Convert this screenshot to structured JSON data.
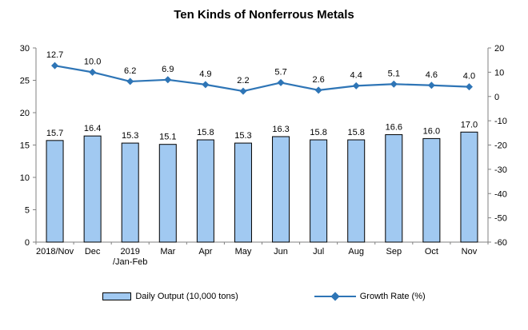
{
  "chart_data": {
    "type": "bar",
    "title": "Ten Kinds of Nonferrous Metals",
    "categories": [
      "2018/Nov",
      "Dec",
      "2019\n/Jan-Feb",
      "Mar",
      "Apr",
      "May",
      "Jun",
      "Jul",
      "Aug",
      "Sep",
      "Oct",
      "Nov"
    ],
    "series": [
      {
        "name": "Daily Output (10,000 tons)",
        "type": "bar",
        "axis": "left",
        "values": [
          15.7,
          16.4,
          15.3,
          15.1,
          15.8,
          15.3,
          16.3,
          15.8,
          15.8,
          16.6,
          16.0,
          17.0
        ],
        "fill": "#A1C9F1",
        "border": "#000000"
      },
      {
        "name": "Growth Rate (%)",
        "type": "line",
        "axis": "right",
        "values": [
          12.7,
          10.0,
          6.2,
          6.9,
          4.9,
          2.2,
          5.7,
          2.6,
          4.4,
          5.1,
          4.6,
          4.0
        ],
        "color": "#2E75B6"
      }
    ],
    "left_axis": {
      "min": 0,
      "max": 30,
      "step": 5,
      "tick_labels": [
        "0",
        "5",
        "10",
        "15",
        "20",
        "25",
        "30"
      ]
    },
    "right_axis": {
      "min": -60,
      "max": 20,
      "step": 10,
      "tick_labels": [
        "-60",
        "-50",
        "-40",
        "-30",
        "-20",
        "-10",
        "0",
        "10",
        "20"
      ]
    },
    "grid": false,
    "legend_position": "bottom",
    "axis_color": "#808080",
    "xlabel": "",
    "ylabel": ""
  }
}
